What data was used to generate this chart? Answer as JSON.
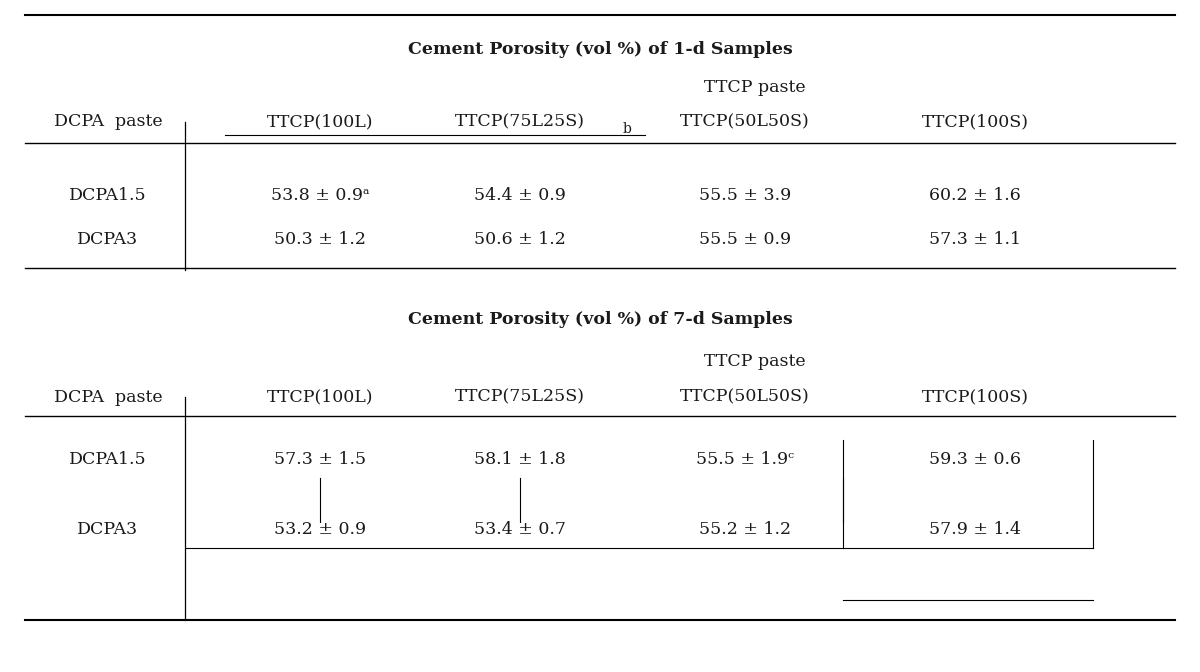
{
  "table1_title": "Cement Porosity (vol %) of 1-d Samples",
  "table2_title": "Cement Porosity (vol %) of 7-d Samples",
  "ttcp_paste_label": "TTCP paste",
  "dcpa_paste_label": "DCPA  paste",
  "col_headers": [
    "TTCP(100L)",
    "TTCP(75L25S)",
    "TTCP(50L50S)",
    "TTCP(100S)"
  ],
  "row_headers": [
    "DCPA1.5",
    "DCPA3"
  ],
  "table1_data": [
    [
      "53.8 ± 0.9ᵃ",
      "54.4 ± 0.9",
      "55.5 ± 3.9",
      "60.2 ± 1.6"
    ],
    [
      "50.3 ± 1.2",
      "50.6 ± 1.2",
      "55.5 ± 0.9",
      "57.3 ± 1.1"
    ]
  ],
  "table2_data": [
    [
      "57.3 ± 1.5",
      "58.1 ± 1.8",
      "55.5 ± 1.9ᶜ",
      "59.3 ± 0.6"
    ],
    [
      "53.2 ± 0.9",
      "53.4 ± 0.7",
      "55.2 ± 1.2",
      "57.9 ± 1.4"
    ]
  ],
  "bg_color": "#ffffff",
  "text_color": "#1a1a1a",
  "font_size": 12.5,
  "title_font_size": 12.5
}
